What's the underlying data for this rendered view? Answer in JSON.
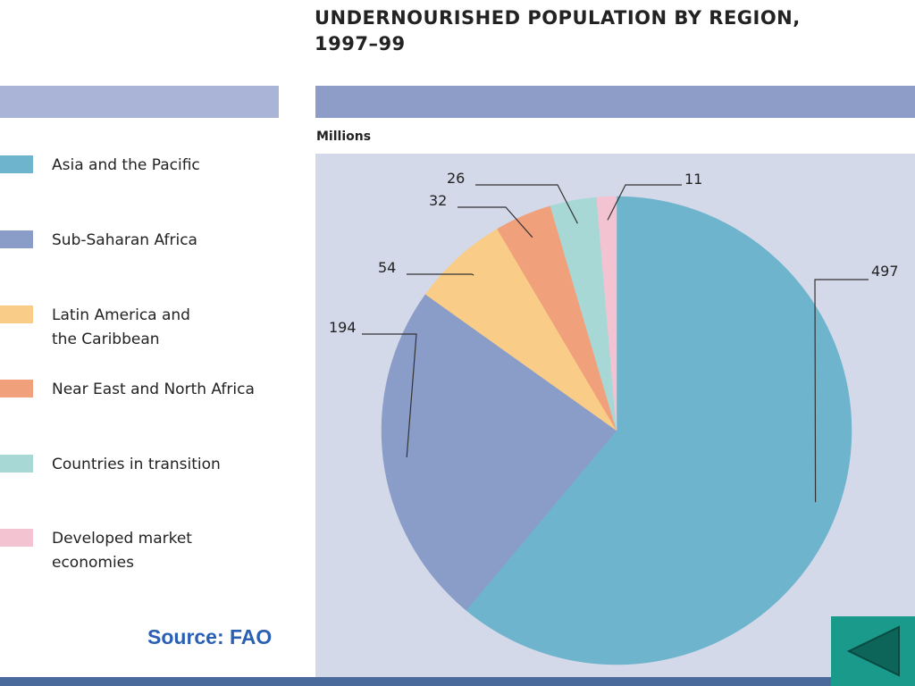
{
  "chart_data": {
    "type": "pie",
    "title": "UNDERNOURISHED POPULATION BY REGION,",
    "subtitle": "1997–99",
    "units": "Millions",
    "slices": [
      {
        "label": "Asia and the Pacific",
        "value": 497,
        "color": "#6eb4cc"
      },
      {
        "label": "Sub-Saharan Africa",
        "value": 194,
        "color": "#8a9dc8"
      },
      {
        "label": "Latin America and\nthe Caribbean",
        "value": 54,
        "color": "#f9cd87"
      },
      {
        "label": "Near East and North Africa",
        "value": 32,
        "color": "#f1a07c"
      },
      {
        "label": "Countries in transition",
        "value": 26,
        "color": "#a8d8d6"
      },
      {
        "label": "Developed market\neconomies",
        "value": 11,
        "color": "#f4c3d2"
      }
    ],
    "legend_position": "left"
  },
  "source": "Source: FAO",
  "nav": {
    "back_icon": "triangle-left-icon",
    "button_color": "#1a9a8a",
    "icon_color": "#0d6458"
  }
}
